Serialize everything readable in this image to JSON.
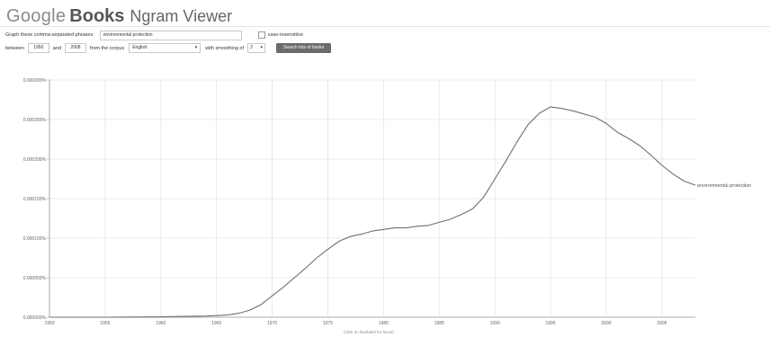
{
  "header": {
    "logo_google": "Google",
    "logo_books": "Books",
    "title": "Ngram Viewer"
  },
  "query": {
    "phrases_label": "Graph these comma-separated phrases:",
    "phrases_value": "environmental protection",
    "case_label": "case-insensitive",
    "between_label": "between",
    "year_start": "1950",
    "and_label": "and",
    "year_end": "2008",
    "corpus_label": "from the corpus",
    "corpus_value": "English",
    "smoothing_label": "with smoothing of",
    "smoothing_value": "3",
    "search_button": "Search lots of books"
  },
  "chart_data": {
    "type": "line",
    "xlim": [
      1950,
      2008
    ],
    "ylim": [
      0,
      0.0003
    ],
    "x_ticks": [
      "1950",
      "1955",
      "1960",
      "1965",
      "1970",
      "1975",
      "1980",
      "1985",
      "1990",
      "1995",
      "2000",
      "2005"
    ],
    "y_ticks": [
      "0.000000%",
      "0.000050%",
      "0.000100%",
      "0.000150%",
      "0.000200%",
      "0.000250%",
      "0.000300%"
    ],
    "grid": true,
    "series": [
      {
        "name": "environmental protection",
        "x": [
          1950,
          1955,
          1960,
          1962,
          1964,
          1965,
          1966,
          1967,
          1968,
          1969,
          1970,
          1971,
          1972,
          1973,
          1974,
          1975,
          1976,
          1977,
          1978,
          1979,
          1980,
          1981,
          1982,
          1983,
          1984,
          1985,
          1986,
          1987,
          1988,
          1989,
          1990,
          1991,
          1992,
          1993,
          1994,
          1995,
          1996,
          1997,
          1998,
          1999,
          2000,
          2001,
          2002,
          2003,
          2004,
          2005,
          2006,
          2007,
          2008
        ],
        "y": [
          0,
          0,
          5e-07,
          1e-06,
          1.5e-06,
          2e-06,
          3e-06,
          5e-06,
          9e-06,
          1.6e-05,
          2.7e-05,
          3.8e-05,
          5e-05,
          6.2e-05,
          7.5e-05,
          8.6e-05,
          9.6e-05,
          0.000102,
          0.000105,
          0.000109,
          0.000111,
          0.000113,
          0.000113,
          0.000115,
          0.000116,
          0.00012,
          0.000124,
          0.00013,
          0.000137,
          0.000152,
          0.000175,
          0.000198,
          0.000222,
          0.000244,
          0.000258,
          0.000266,
          0.000264,
          0.000261,
          0.000257,
          0.000253,
          0.000245,
          0.000234,
          0.000226,
          0.000217,
          0.000205,
          0.000192,
          0.000181,
          0.000172,
          0.000167
        ]
      }
    ],
    "note": "(click on line/label for focus)"
  }
}
